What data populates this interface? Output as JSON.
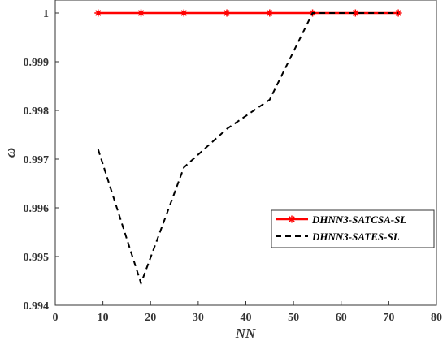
{
  "chart_data": {
    "type": "line",
    "xlabel": "NN",
    "ylabel": "ω",
    "xlim": [
      0,
      80
    ],
    "ylim": [
      0.994,
      1.0
    ],
    "xticks": [
      0,
      10,
      20,
      30,
      40,
      50,
      60,
      70,
      80
    ],
    "xtick_labels": [
      "0",
      "10",
      "20",
      "30",
      "40",
      "50",
      "60",
      "70",
      "80"
    ],
    "yticks": [
      0.994,
      0.995,
      0.996,
      0.997,
      0.998,
      0.999,
      1.0
    ],
    "ytick_labels": [
      "0.994",
      "0.995",
      "0.996",
      "0.997",
      "0.998",
      "0.999",
      "1"
    ],
    "grid": false,
    "legend_position": "right",
    "series": [
      {
        "name": "DHNN3-SATCSA-SL",
        "color": "#ff0000",
        "line_style": "solid",
        "marker": "asterisk",
        "x": [
          9,
          18,
          27,
          36,
          45,
          54,
          63,
          72
        ],
        "y": [
          1.0,
          1.0,
          1.0,
          1.0,
          1.0,
          1.0,
          1.0,
          1.0
        ]
      },
      {
        "name": "DHNN3-SATES-SL",
        "color": "#000000",
        "line_style": "dashed",
        "marker": "none",
        "x": [
          9,
          18,
          27,
          36,
          45,
          54,
          63,
          72
        ],
        "y": [
          0.9972,
          0.99445,
          0.99683,
          0.99762,
          0.99822,
          1.0,
          1.0,
          1.0
        ]
      }
    ]
  }
}
